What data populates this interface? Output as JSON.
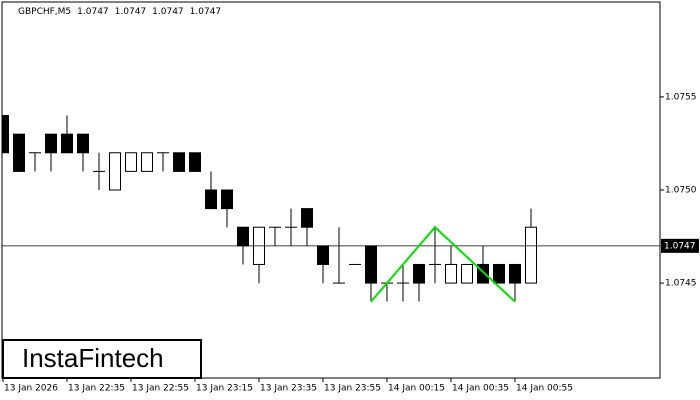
{
  "chart_data": {
    "type": "candlestick",
    "symbol": "GBPCHF,M5",
    "quotes": [
      1.0747,
      1.0747,
      1.0747,
      1.0747
    ],
    "categories": [
      "13 Jan 2026",
      null,
      null,
      null,
      "13 Jan 22:35",
      null,
      null,
      null,
      "13 Jan 22:55",
      null,
      null,
      null,
      "13 Jan 23:15",
      null,
      null,
      null,
      "13 Jan 23:35",
      null,
      null,
      null,
      "13 Jan 23:55",
      null,
      null,
      null,
      "14 Jan 00:15",
      null,
      null,
      null,
      "14 Jan 00:35",
      null,
      null,
      null,
      "14 Jan 00:55",
      null
    ],
    "open": [
      1.0754,
      1.0753,
      1.0752,
      1.0753,
      1.0753,
      1.0753,
      1.0751,
      1.075,
      1.0751,
      1.0751,
      1.0752,
      1.0752,
      1.0752,
      1.075,
      1.075,
      1.0748,
      1.0746,
      1.0748,
      1.0748,
      1.0749,
      1.0747,
      1.0745,
      1.0746,
      1.0747,
      1.0745,
      1.0745,
      1.0746,
      1.0746,
      1.0745,
      1.0745,
      1.0746,
      1.0746,
      1.0746,
      1.0745
    ],
    "high": [
      1.0754,
      1.0753,
      1.0752,
      1.0753,
      1.0754,
      1.0753,
      1.0752,
      1.0752,
      1.0752,
      1.0752,
      1.0752,
      1.0752,
      1.0752,
      1.0751,
      1.075,
      1.0748,
      1.0748,
      1.0748,
      1.0749,
      1.0749,
      1.0747,
      1.0748,
      1.0746,
      1.0747,
      1.0745,
      1.0746,
      1.0746,
      1.0748,
      1.0747,
      1.0746,
      1.0747,
      1.0746,
      1.0746,
      1.0749
    ],
    "low": [
      1.0752,
      1.0751,
      1.0751,
      1.0751,
      1.0752,
      1.0751,
      1.075,
      1.075,
      1.0751,
      1.0751,
      1.0751,
      1.0751,
      1.0751,
      1.0749,
      1.0748,
      1.0746,
      1.0745,
      1.0747,
      1.0747,
      1.0747,
      1.0745,
      1.0745,
      1.0746,
      1.0744,
      1.0744,
      1.0744,
      1.0744,
      1.0745,
      1.0745,
      1.0745,
      1.0745,
      1.0745,
      1.0744,
      1.0745
    ],
    "close": [
      1.0752,
      1.0751,
      1.0752,
      1.0752,
      1.0752,
      1.0752,
      1.0751,
      1.0752,
      1.0752,
      1.0752,
      1.0752,
      1.0751,
      1.0751,
      1.0749,
      1.0749,
      1.0747,
      1.0748,
      1.0748,
      1.0748,
      1.0748,
      1.0746,
      1.0745,
      1.0746,
      1.0745,
      1.0745,
      1.0745,
      1.0745,
      1.0746,
      1.0746,
      1.0746,
      1.0745,
      1.0745,
      1.0745,
      1.0748
    ],
    "ylim": [
      1.07399,
      1.07601
    ],
    "yticks": [
      1.0755,
      {
        "value": 1.075,
        "label": "1.0750"
      },
      1.0745
    ],
    "current_price": 1.0747,
    "pattern": {
      "color": "#00e000",
      "x": [
        23,
        27,
        32
      ],
      "values": [
        1.0744,
        1.0748,
        1.0744
      ]
    },
    "watermark": "InstaFintech"
  }
}
